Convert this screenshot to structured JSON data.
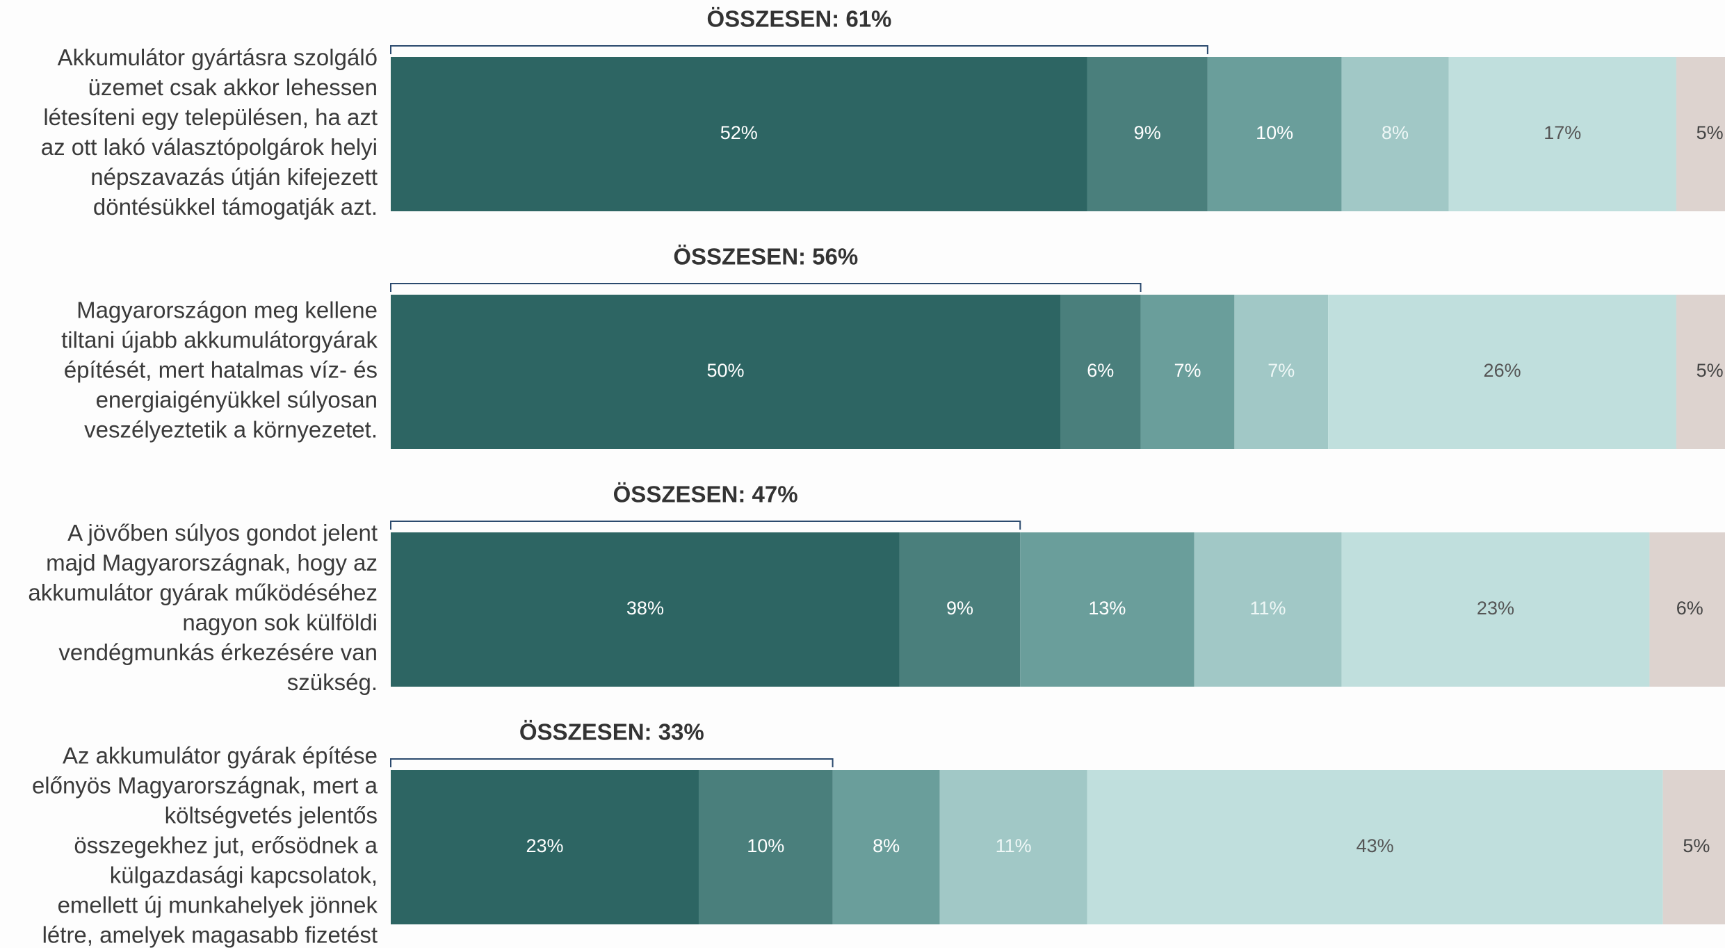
{
  "chart_data": {
    "type": "stacked-barh",
    "categories": [
      [
        "Akkumulátor gyártásra szolgáló",
        "üzemet csak akkor lehessen",
        "létesíteni egy településen, ha azt",
        "az ott lakó választópolgárok helyi",
        "népszavazás útján kifejezett",
        "döntésükkel támogatják azt."
      ],
      [
        "Magyarországon meg kellene",
        "tiltani újabb akkumulátorgyárak",
        "építését, mert hatalmas víz- és",
        "energiaigényükkel súlyosan",
        "veszélyeztetik a környezetet."
      ],
      [
        "A jövőben súlyos gondot jelent",
        "majd Magyarországnak, hogy az",
        "akkumulátor gyárak működéséhez",
        "nagyon sok külföldi",
        "vendégmunkás érkezésére van",
        "szükség."
      ],
      [
        "Az akkumulátor gyárak építése",
        "előnyös Magyarországnak, mert a",
        "költségvetés jelentős",
        "összegekhez jut, erősödnek a",
        "külgazdasági kapcsolatok,",
        "emellett új munkahelyek jönnek",
        "létre, amelyek magasabb fizetést"
      ]
    ],
    "totals": [
      {
        "value": 61,
        "label": "ÖSSZESEN: 61%"
      },
      {
        "value": 56,
        "label": "ÖSSZESEN: 56%"
      },
      {
        "value": 47,
        "label": "ÖSSZESEN: 47%"
      },
      {
        "value": 33,
        "label": "ÖSSZESEN: 33%"
      }
    ],
    "series": [
      {
        "color": "#2d6563",
        "label_color": "#ffffff",
        "values": [
          52,
          50,
          38,
          23
        ],
        "value_labels": [
          "52%",
          "50%",
          "38%",
          "23%"
        ]
      },
      {
        "color": "#4a7f7c",
        "label_color": "#ffffff",
        "values": [
          9,
          6,
          9,
          10
        ],
        "value_labels": [
          "9%",
          "6%",
          "9%",
          "10%"
        ]
      },
      {
        "color": "#6a9e9b",
        "label_color": "#ffffff",
        "values": [
          10,
          7,
          13,
          8
        ],
        "value_labels": [
          "10%",
          "7%",
          "13%",
          "8%"
        ]
      },
      {
        "color": "#a1c8c6",
        "label_color": "#eef7f6",
        "values": [
          8,
          7,
          11,
          11
        ],
        "value_labels": [
          "8%",
          "7%",
          "11%",
          "11%"
        ]
      },
      {
        "color": "#c0dfdd",
        "label_color": "#555555",
        "values": [
          17,
          26,
          23,
          43
        ],
        "value_labels": [
          "17%",
          "26%",
          "23%",
          "43%"
        ]
      },
      {
        "color": "#ddd3cf",
        "label_color": "#444444",
        "values": [
          5,
          5,
          6,
          5
        ],
        "value_labels": [
          "5%",
          "5%",
          "6%",
          "5%"
        ]
      }
    ]
  }
}
